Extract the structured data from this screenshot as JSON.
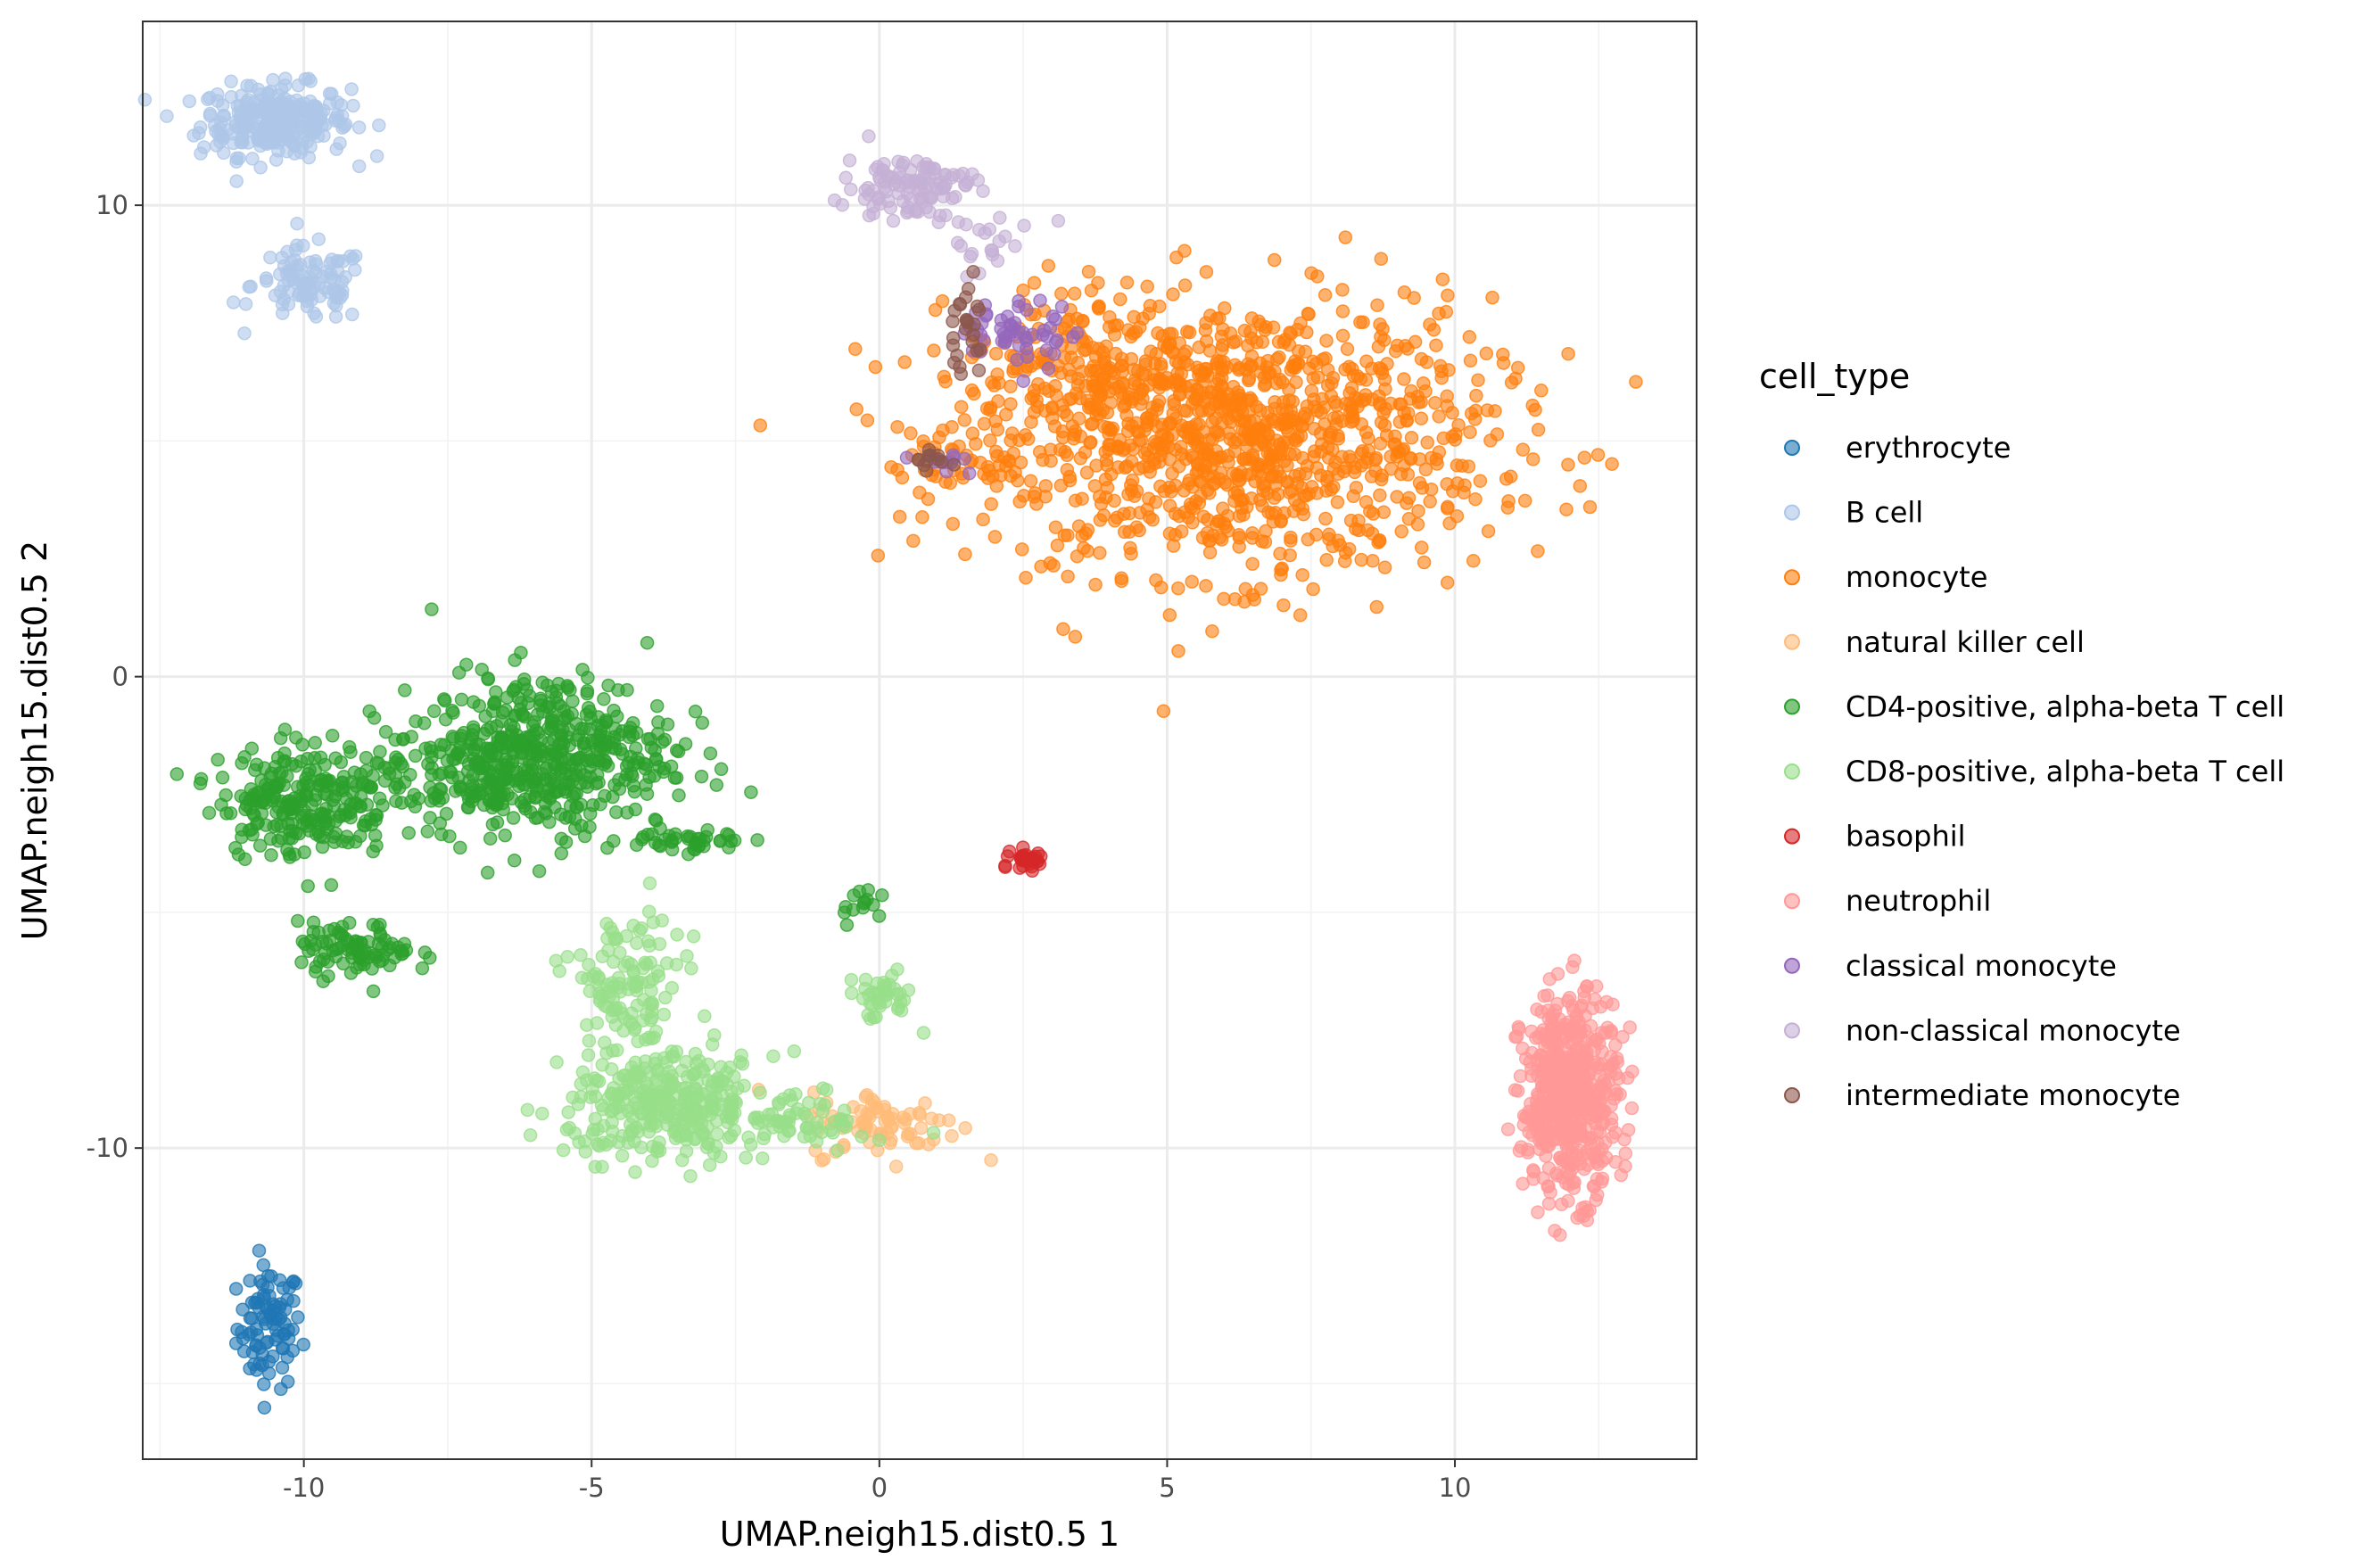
{
  "chart_data": {
    "type": "scatter",
    "title": "",
    "xlabel": "UMAP.neigh15.dist0.5 1",
    "ylabel": "UMAP.neigh15.dist0.5 2",
    "xlim": [
      -12.8,
      14.2
    ],
    "ylim": [
      -16.6,
      13.9
    ],
    "x_ticks": [
      -10,
      -5,
      0,
      5,
      10
    ],
    "x_tick_labels": [
      "-10",
      "-5",
      "0",
      "5",
      "10"
    ],
    "y_ticks": [
      -10,
      0,
      10
    ],
    "y_tick_labels": [
      "-10",
      "0",
      "10"
    ],
    "grid": true,
    "legend": {
      "title": "cell_type",
      "placement": "right"
    },
    "series": [
      {
        "name": "erythrocyte",
        "color": "#1f77b4",
        "clusters": [
          {
            "cx": -10.6,
            "cy": -13.8,
            "sx": 0.28,
            "sy": 0.65,
            "n": 90
          }
        ]
      },
      {
        "name": "B cell",
        "color": "#aec7e8",
        "clusters": [
          {
            "cx": -10.5,
            "cy": 11.8,
            "sx": 0.65,
            "sy": 0.38,
            "n": 260
          },
          {
            "cx": -9.9,
            "cy": 8.3,
            "sx": 0.5,
            "sy": 0.4,
            "n": 100
          }
        ]
      },
      {
        "name": "monocyte",
        "color": "#ff7f0e",
        "clusters": [
          {
            "cx": 6.2,
            "cy": 5.1,
            "sx": 2.2,
            "sy": 1.45,
            "n": 1100
          },
          {
            "cx": 3.3,
            "cy": 6.5,
            "sx": 0.9,
            "sy": 0.8,
            "n": 140
          },
          {
            "cx": 1.6,
            "cy": 4.5,
            "sx": 0.8,
            "sy": 0.35,
            "n": 40
          }
        ]
      },
      {
        "name": "natural killer cell",
        "color": "#ffbb78",
        "clusters": [
          {
            "cx": 0.1,
            "cy": -9.5,
            "sx": 0.65,
            "sy": 0.35,
            "n": 80
          }
        ]
      },
      {
        "name": "CD4-positive, alpha-beta T cell",
        "color": "#2ca02c",
        "clusters": [
          {
            "cx": -5.7,
            "cy": -1.6,
            "sx": 1.05,
            "sy": 0.85,
            "n": 420
          },
          {
            "cx": -7.2,
            "cy": -2.0,
            "sx": 0.8,
            "sy": 0.6,
            "n": 150
          },
          {
            "cx": -10.0,
            "cy": -2.6,
            "sx": 0.75,
            "sy": 0.6,
            "n": 250
          },
          {
            "cx": -9.1,
            "cy": -5.8,
            "sx": 0.5,
            "sy": 0.28,
            "n": 90
          },
          {
            "cx": -3.3,
            "cy": -3.5,
            "sx": 0.5,
            "sy": 0.15,
            "n": 40
          },
          {
            "cx": -0.3,
            "cy": -4.8,
            "sx": 0.2,
            "sy": 0.2,
            "n": 14
          }
        ]
      },
      {
        "name": "CD8-positive, alpha-beta T cell",
        "color": "#98df8a",
        "clusters": [
          {
            "cx": -3.6,
            "cy": -9.1,
            "sx": 0.9,
            "sy": 0.55,
            "n": 340
          },
          {
            "cx": -4.4,
            "cy": -6.6,
            "sx": 0.5,
            "sy": 0.8,
            "n": 120
          },
          {
            "cx": 0.0,
            "cy": -6.8,
            "sx": 0.3,
            "sy": 0.25,
            "n": 40
          },
          {
            "cx": -1.2,
            "cy": -9.4,
            "sx": 0.5,
            "sy": 0.3,
            "n": 50
          }
        ]
      },
      {
        "name": "basophil",
        "color": "#d62728",
        "clusters": [
          {
            "cx": 2.6,
            "cy": -3.9,
            "sx": 0.15,
            "sy": 0.12,
            "n": 30
          }
        ]
      },
      {
        "name": "neutrophil",
        "color": "#ff9896",
        "clusters": [
          {
            "cx": 12.0,
            "cy": -8.9,
            "sx": 0.42,
            "sy": 1.05,
            "n": 520
          }
        ]
      },
      {
        "name": "classical monocyte",
        "color": "#9467bd",
        "clusters": [
          {
            "cx": 2.4,
            "cy": 7.3,
            "sx": 0.5,
            "sy": 0.35,
            "n": 55
          },
          {
            "cx": 1.2,
            "cy": 4.6,
            "sx": 0.3,
            "sy": 0.15,
            "n": 12
          }
        ]
      },
      {
        "name": "non-classical monocyte",
        "color": "#c5b0d5",
        "clusters": [
          {
            "cx": 0.5,
            "cy": 10.4,
            "sx": 0.55,
            "sy": 0.35,
            "n": 110
          },
          {
            "cx": 1.9,
            "cy": 9.2,
            "sx": 0.5,
            "sy": 0.35,
            "n": 20
          }
        ]
      },
      {
        "name": "intermediate monocyte",
        "color": "#8c564b",
        "clusters": [
          {
            "cx": 1.5,
            "cy": 7.4,
            "sx": 0.18,
            "sy": 0.55,
            "n": 25
          },
          {
            "cx": 0.7,
            "cy": 4.6,
            "sx": 0.3,
            "sy": 0.1,
            "n": 12
          }
        ]
      }
    ]
  }
}
